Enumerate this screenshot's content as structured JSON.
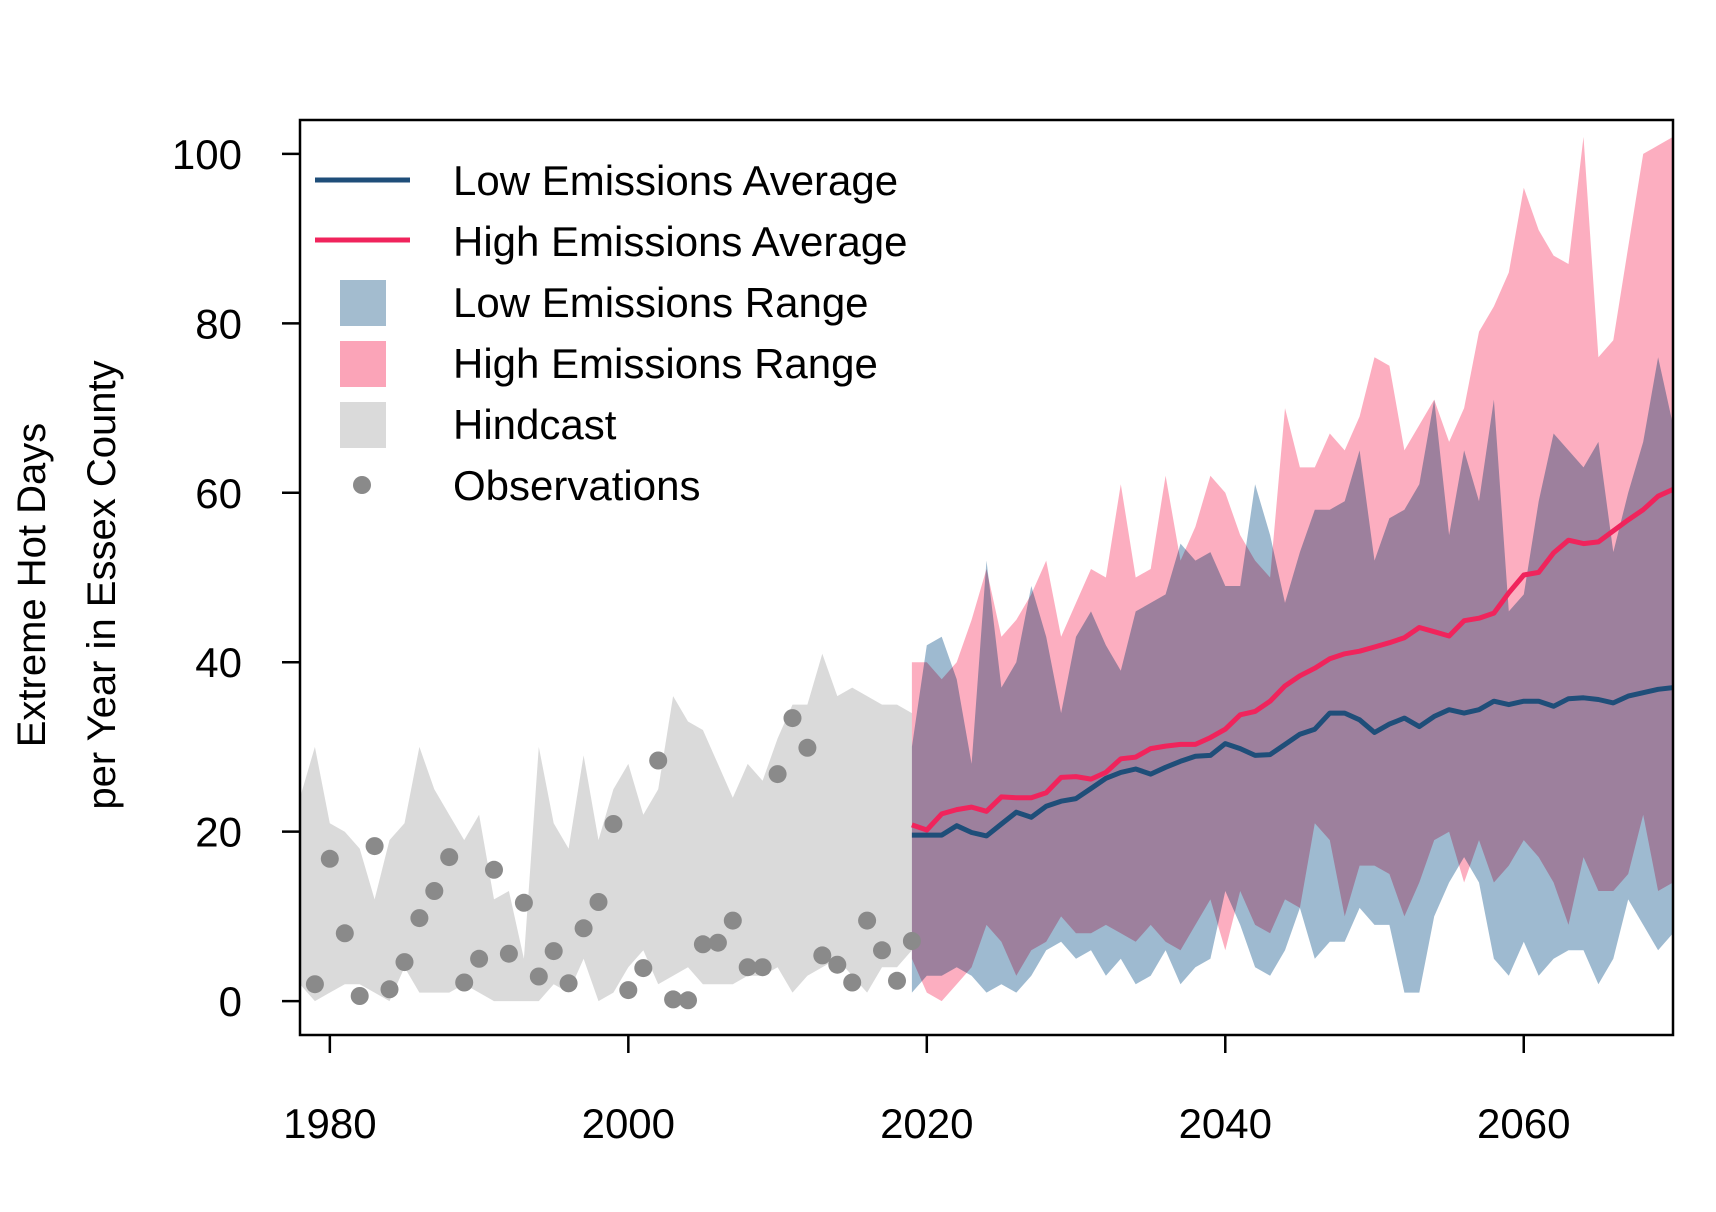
{
  "chart_data": {
    "type": "area",
    "title": "",
    "ylabel_lines": [
      "Extreme Hot Days",
      "per Year in Essex County"
    ],
    "xlabel": "",
    "xlim": [
      1978,
      2070
    ],
    "ylim": [
      -4,
      104
    ],
    "x_ticks": [
      1980,
      2000,
      2020,
      2040,
      2060
    ],
    "y_ticks": [
      0,
      20,
      40,
      60,
      80,
      100
    ],
    "grid": false,
    "legend_position": "top-left",
    "legend": [
      {
        "key": "low_avg",
        "label": "Low Emissions Average",
        "kind": "line",
        "color": "#1f4e79"
      },
      {
        "key": "high_avg",
        "label": "High Emissions Average",
        "kind": "line",
        "color": "#f0245c"
      },
      {
        "key": "low_range",
        "label": "Low Emissions Range",
        "kind": "box",
        "color": "#a3bccf"
      },
      {
        "key": "high_range",
        "label": "High Emissions Range",
        "kind": "box",
        "color": "#fba4b8"
      },
      {
        "key": "hindcast",
        "label": "Hindcast",
        "kind": "box",
        "color": "#dadada"
      },
      {
        "key": "observations",
        "label": "Observations",
        "kind": "point",
        "color": "#8a8a8a"
      }
    ],
    "colors": {
      "low_avg": "#1f4e79",
      "high_avg": "#f0245c",
      "low_range": "#86a9c4",
      "high_range": "#fb8fa8",
      "hindcast": "#dadada",
      "observations": "#8a8a8a"
    },
    "hindcast": {
      "years": [
        1978,
        1979,
        1980,
        1981,
        1982,
        1983,
        1984,
        1985,
        1986,
        1987,
        1988,
        1989,
        1990,
        1991,
        1992,
        1993,
        1994,
        1995,
        1996,
        1997,
        1998,
        1999,
        2000,
        2001,
        2002,
        2003,
        2004,
        2005,
        2006,
        2007,
        2008,
        2009,
        2010,
        2011,
        2012,
        2013,
        2014,
        2015,
        2016,
        2017,
        2018,
        2019
      ],
      "upper": [
        24,
        30,
        21,
        20,
        18,
        12,
        19,
        21,
        30,
        25,
        22,
        19,
        22,
        12,
        13,
        5,
        30,
        21,
        18,
        29,
        19,
        25,
        28,
        22,
        25,
        36,
        33,
        32,
        28,
        24,
        28,
        26,
        31,
        35,
        35,
        41,
        36,
        37,
        36,
        35,
        35,
        34
      ],
      "lower": [
        2,
        0,
        1,
        2,
        2,
        1,
        0,
        4,
        1,
        1,
        1,
        2,
        1,
        0,
        0,
        0,
        0,
        2,
        1,
        5,
        0,
        1,
        4,
        6,
        2,
        3,
        4,
        2,
        2,
        2,
        3,
        3,
        4,
        1,
        3,
        4,
        5,
        3,
        1,
        4,
        4,
        6
      ]
    },
    "observations": {
      "years": [
        1979,
        1980,
        1981,
        1982,
        1983,
        1984,
        1985,
        1986,
        1987,
        1988,
        1989,
        1990,
        1991,
        1992,
        1993,
        1994,
        1995,
        1996,
        1997,
        1998,
        1999,
        2000,
        2001,
        2002,
        2003,
        2004,
        2005,
        2006,
        2007,
        2008,
        2009,
        2010,
        2011,
        2012,
        2013,
        2014,
        2015,
        2016,
        2017,
        2018,
        2019
      ],
      "values": [
        2,
        16.8,
        8,
        0.6,
        18.3,
        1.4,
        4.6,
        9.8,
        13,
        17,
        2.2,
        5,
        15.5,
        5.6,
        11.6,
        2.9,
        5.9,
        2.1,
        8.6,
        11.7,
        20.9,
        1.3,
        3.9,
        28.4,
        0.2,
        0.1,
        6.7,
        6.9,
        9.5,
        4,
        4,
        26.8,
        33.4,
        29.9,
        5.4,
        4.3,
        2.2,
        9.5,
        6,
        2.4,
        7.1
      ]
    },
    "low_emissions": {
      "years": [
        2019,
        2020,
        2021,
        2022,
        2023,
        2024,
        2025,
        2026,
        2027,
        2028,
        2029,
        2030,
        2031,
        2032,
        2033,
        2034,
        2035,
        2036,
        2037,
        2038,
        2039,
        2040,
        2041,
        2042,
        2043,
        2044,
        2045,
        2046,
        2047,
        2048,
        2049,
        2050,
        2051,
        2052,
        2053,
        2054,
        2055,
        2056,
        2057,
        2058,
        2059,
        2060,
        2061,
        2062,
        2063,
        2064,
        2065,
        2066,
        2067,
        2068,
        2069,
        2070
      ],
      "average": [
        19.6,
        19.6,
        19.6,
        20.7,
        19.9,
        19.5,
        20.9,
        22.3,
        21.7,
        23,
        23.6,
        23.9,
        25.1,
        26.3,
        27,
        27.4,
        26.8,
        27.6,
        28.3,
        28.9,
        29,
        30.4,
        29.8,
        29,
        29.1,
        30.3,
        31.5,
        32.1,
        34,
        34,
        33.2,
        31.7,
        32.7,
        33.4,
        32.4,
        33.6,
        34.4,
        34,
        34.4,
        35.4,
        35,
        35.4,
        35.4,
        34.8,
        35.7,
        35.8,
        35.6,
        35.2,
        36,
        36.4,
        36.8,
        37
      ],
      "upper": [
        30,
        42,
        43,
        38,
        28,
        52,
        37,
        40,
        49,
        43,
        34,
        43,
        46,
        42,
        39,
        46,
        47,
        48,
        54,
        52,
        53,
        49,
        49,
        61,
        55,
        47,
        53,
        58,
        58,
        59,
        65,
        52,
        57,
        58,
        61,
        71,
        55,
        65,
        59,
        71,
        46,
        48,
        59,
        67,
        65,
        63,
        66,
        53,
        60,
        66,
        76,
        68
      ],
      "lower": [
        1,
        3,
        3,
        4,
        3,
        1,
        2,
        1,
        3,
        6,
        7,
        5,
        6,
        3,
        5,
        2,
        3,
        6,
        2,
        4,
        5,
        13,
        9,
        4,
        3,
        6,
        11,
        5,
        7,
        7,
        11,
        9,
        9,
        1,
        1,
        10,
        14,
        17,
        14,
        5,
        3,
        7,
        3,
        5,
        6,
        6,
        2,
        5,
        12,
        9,
        6,
        8
      ]
    },
    "high_emissions": {
      "years": [
        2019,
        2020,
        2021,
        2022,
        2023,
        2024,
        2025,
        2026,
        2027,
        2028,
        2029,
        2030,
        2031,
        2032,
        2033,
        2034,
        2035,
        2036,
        2037,
        2038,
        2039,
        2040,
        2041,
        2042,
        2043,
        2044,
        2045,
        2046,
        2047,
        2048,
        2049,
        2050,
        2051,
        2052,
        2053,
        2054,
        2055,
        2056,
        2057,
        2058,
        2059,
        2060,
        2061,
        2062,
        2063,
        2064,
        2065,
        2066,
        2067,
        2068,
        2069,
        2070
      ],
      "average": [
        20.8,
        20.2,
        22.1,
        22.6,
        22.9,
        22.4,
        24.1,
        24,
        24,
        24.6,
        26.4,
        26.5,
        26.2,
        27,
        28.6,
        28.8,
        29.8,
        30.1,
        30.3,
        30.3,
        31.1,
        32.1,
        33.8,
        34.2,
        35.4,
        37.2,
        38.4,
        39.3,
        40.4,
        41,
        41.3,
        41.8,
        42.3,
        42.9,
        44.1,
        43.6,
        43.1,
        44.9,
        45.2,
        45.8,
        48.2,
        50.3,
        50.6,
        52.9,
        54.4,
        54,
        54.2,
        55.5,
        56.8,
        58,
        59.6,
        60.4
      ],
      "upper": [
        40,
        40,
        38,
        40,
        45,
        51,
        43,
        45,
        48,
        52,
        43,
        47,
        51,
        50,
        61,
        50,
        51,
        62,
        52,
        56,
        62,
        60,
        55,
        52,
        50,
        70,
        63,
        63,
        67,
        65,
        69,
        76,
        75,
        65,
        68,
        71,
        66,
        70,
        79,
        82,
        86,
        96,
        91,
        88,
        87,
        102,
        76,
        78,
        89,
        100,
        101,
        102
      ],
      "lower": [
        5,
        1,
        0,
        2,
        4,
        9,
        7,
        3,
        6,
        7,
        10,
        8,
        8,
        9,
        8,
        7,
        9,
        7,
        6,
        9,
        12,
        6,
        13,
        9,
        8,
        12,
        11,
        21,
        19,
        10,
        16,
        16,
        15,
        10,
        14,
        19,
        20,
        14,
        19,
        14,
        16,
        19,
        17,
        14,
        9,
        17,
        13,
        13,
        15,
        22,
        13,
        14
      ]
    }
  }
}
